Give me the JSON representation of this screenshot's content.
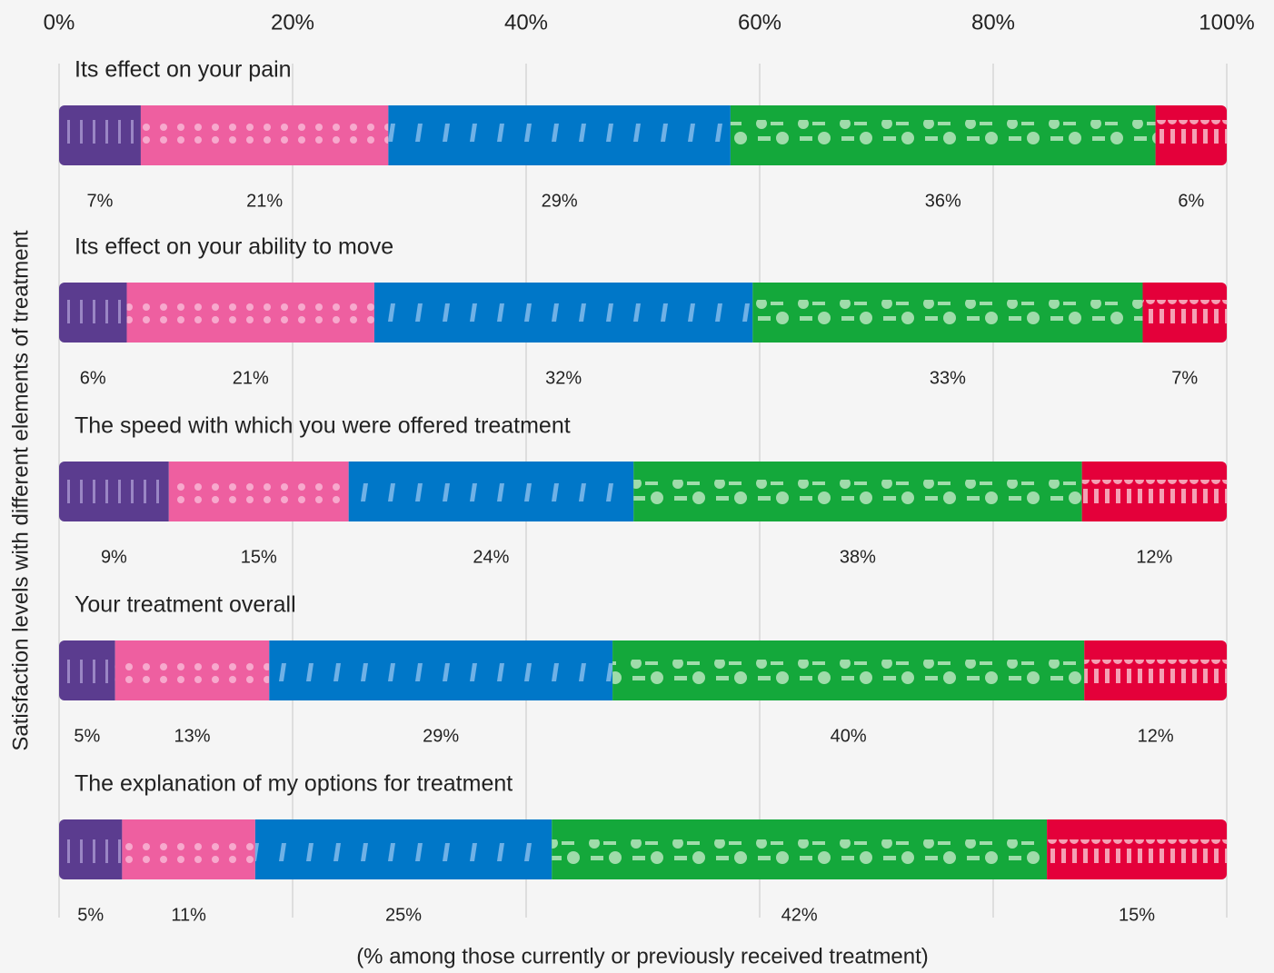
{
  "chart_data": {
    "type": "stacked-bar",
    "x_label": "(% among those currently or previously received treatment)",
    "y_label": "Satisfaction levels with different elements of treatment",
    "categories": [
      "Its effect on your pain",
      "Its effect on your ability to move",
      "The speed with which you were offered treatment",
      "Your treatment overall",
      "The explanation of my options for treatment"
    ],
    "series": [
      {
        "color": "#5b3c8f",
        "values": [
          7.0,
          5.8,
          9.4,
          4.8,
          5.4
        ],
        "value_labels": [
          "7%",
          "6%",
          "9%",
          "5%",
          "5%"
        ]
      },
      {
        "color": "#ee5fa0",
        "values": [
          21.2,
          21.2,
          15.4,
          13.2,
          11.4
        ],
        "value_labels": [
          "21%",
          "21%",
          "15%",
          "13%",
          "11%"
        ]
      },
      {
        "color": "#0077c8",
        "values": [
          29.3,
          32.4,
          24.4,
          29.4,
          25.4
        ],
        "value_labels": [
          "29%",
          "32%",
          "24%",
          "29%",
          "25%"
        ]
      },
      {
        "color": "#14a83b",
        "values": [
          36.4,
          33.4,
          38.4,
          40.4,
          42.4
        ],
        "value_labels": [
          "36%",
          "33%",
          "38%",
          "40%",
          "42%"
        ]
      },
      {
        "color": "#e4003a",
        "values": [
          6.1,
          7.2,
          12.4,
          12.2,
          15.4
        ],
        "value_labels": [
          "6%",
          "7%",
          "12%",
          "12%",
          "15%"
        ]
      }
    ],
    "xlim": [
      0,
      100
    ],
    "xticks": [
      {
        "value": 0,
        "label": "0%"
      },
      {
        "value": 20,
        "label": "20%"
      },
      {
        "value": 40,
        "label": "40%"
      },
      {
        "value": 60,
        "label": "60%"
      },
      {
        "value": 80,
        "label": "80%"
      },
      {
        "value": 100,
        "label": "100%"
      }
    ],
    "grid": true
  }
}
